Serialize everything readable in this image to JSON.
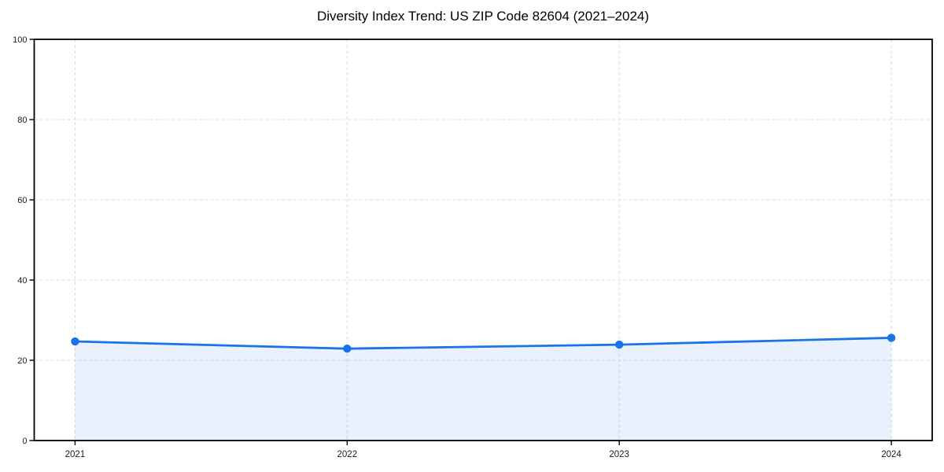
{
  "chart_data": {
    "type": "area",
    "title": "Diversity Index Trend: US ZIP Code 82604 (2021–2024)",
    "categories": [
      "2021",
      "2022",
      "2023",
      "2024"
    ],
    "values": [
      24.7,
      22.9,
      23.9,
      25.6
    ],
    "xlabel": "",
    "ylabel": "",
    "ylim": [
      0,
      100
    ],
    "yticks": [
      0,
      20,
      40,
      60,
      80,
      100
    ],
    "grid": "dashed",
    "legend": "none",
    "marker": "circle",
    "colors": {
      "line": "#1a73e8",
      "fill": "rgba(26,115,232,0.10)",
      "grid": "#dcdcdc",
      "axis": "#000000",
      "tick_label": "#1a1a1a"
    }
  }
}
